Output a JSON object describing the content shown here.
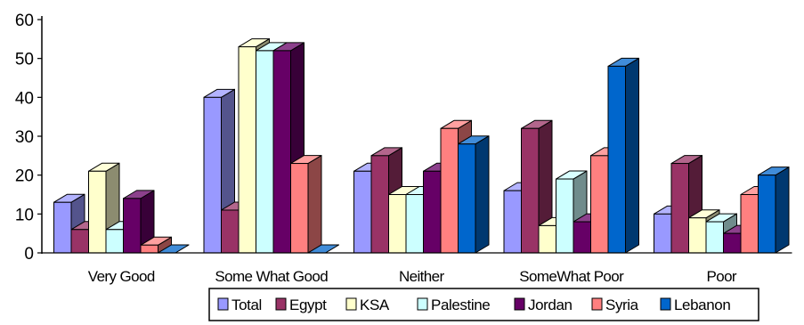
{
  "chart_data": {
    "type": "bar",
    "style": "3d-clustered-column",
    "title": "",
    "xlabel": "",
    "ylabel": "",
    "ylim": [
      0,
      60
    ],
    "yticks": [
      "0",
      "10",
      "20",
      "30",
      "40",
      "50",
      "60"
    ],
    "categories": [
      "Very Good",
      "Some What Good",
      "Neither",
      "SomeWhat Poor",
      "Poor"
    ],
    "series": [
      {
        "name": "Total",
        "color": "#9999ff",
        "values": [
          13,
          40,
          21,
          16,
          10
        ]
      },
      {
        "name": "Egypt",
        "color": "#993366",
        "values": [
          6,
          11,
          25,
          32,
          23
        ]
      },
      {
        "name": "KSA",
        "color": "#ffffcc",
        "values": [
          21,
          53,
          15,
          7,
          9
        ]
      },
      {
        "name": "Palestine",
        "color": "#ccffff",
        "values": [
          6,
          52,
          15,
          19,
          8
        ]
      },
      {
        "name": "Jordan",
        "color": "#660066",
        "values": [
          14,
          52,
          21,
          8,
          5
        ]
      },
      {
        "name": "Syria",
        "color": "#ff8080",
        "values": [
          2,
          23,
          32,
          25,
          15
        ]
      },
      {
        "name": "Lebanon",
        "color": "#0066cc",
        "values": [
          0,
          0,
          28,
          48,
          20
        ]
      }
    ],
    "grid": false,
    "legend_position": "bottom"
  }
}
